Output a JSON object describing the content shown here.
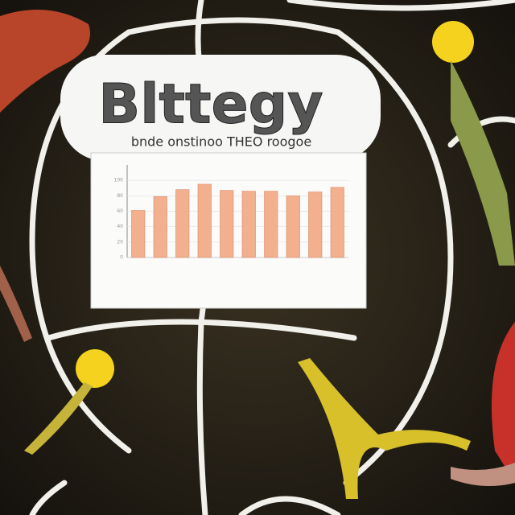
{
  "chart_data": {
    "type": "bar",
    "title": "Blttegy",
    "subtitle": "bnde onstinoo THEO roogoe",
    "categories": [
      null,
      null,
      null,
      null,
      null,
      null,
      null,
      null,
      null,
      null
    ],
    "values": [
      61,
      79,
      88,
      95,
      87,
      86,
      86,
      80,
      85,
      91
    ],
    "color": "#f2b08e",
    "ylim": [
      0,
      120
    ],
    "yticks": [
      0,
      20,
      40,
      60,
      80,
      100
    ],
    "grid": true
  }
}
